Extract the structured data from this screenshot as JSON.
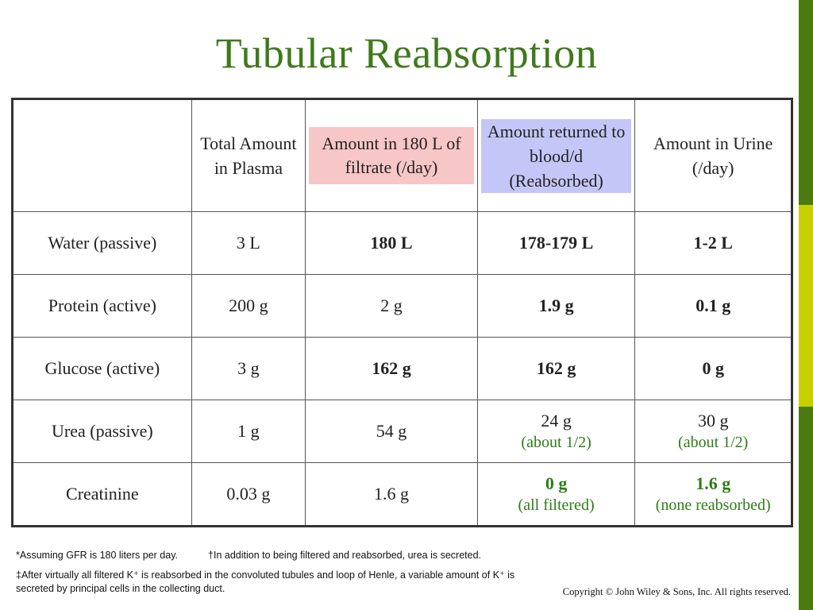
{
  "title": "Tubular Reabsorption",
  "table": {
    "headers": [
      "",
      "Total Amount in Plasma",
      "Amount in 180 L of filtrate (/day)",
      "Amount returned to blood/d (Reabsorbed)",
      "Amount in Urine (/day)"
    ],
    "rows": [
      {
        "name": "Water (passive)",
        "plasma": "3 L",
        "filtrate": "180 L",
        "reabsorbed": "178-179 L",
        "reabsorbed_note": "",
        "urine": "1-2 L",
        "urine_note": ""
      },
      {
        "name": "Protein (active)",
        "plasma": "200 g",
        "filtrate": "2 g",
        "reabsorbed": "1.9 g",
        "reabsorbed_note": "",
        "urine": "0.1 g",
        "urine_note": ""
      },
      {
        "name": "Glucose (active)",
        "plasma": "3 g",
        "filtrate": "162 g",
        "reabsorbed": "162 g",
        "reabsorbed_note": "",
        "urine": "0 g",
        "urine_note": ""
      },
      {
        "name": "Urea (passive)",
        "plasma": "1 g",
        "filtrate": "54 g",
        "reabsorbed": "24 g",
        "reabsorbed_note": "(about 1/2)",
        "urine": "30 g",
        "urine_note": "(about 1/2)"
      },
      {
        "name": "Creatinine",
        "plasma": "0.03 g",
        "filtrate": "1.6 g",
        "reabsorbed": "0 g",
        "reabsorbed_note": "(all filtered)",
        "urine": "1.6 g",
        "urine_note": "(none reabsorbed)"
      }
    ]
  },
  "footnotes": {
    "gfr": "*Assuming GFR is 180 liters per day.",
    "urea": "†In addition to being filtered and reabsorbed, urea is secreted.",
    "potassium": "‡After virtually all filtered K⁺ is reabsorbed in the convoluted tubules and loop of Henle, a variable amount of K⁺ is secreted by principal cells in the collecting duct."
  },
  "copyright": "Copyright © John Wiley & Sons, Inc. All rights reserved.",
  "colors": {
    "title": "#3f7a1c",
    "highlight_value": "#2c7d16",
    "pink_highlight": "#f7c6c6",
    "blue_highlight": "#c4c6f7",
    "side_bar_dark": "#4a7a10",
    "side_bar_light": "#c8cf00"
  }
}
